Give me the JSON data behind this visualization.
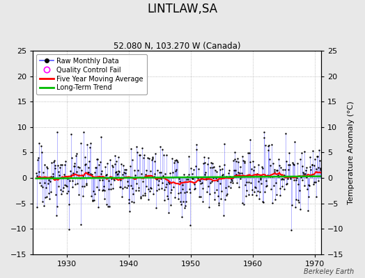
{
  "title": "LINTLAW,SA",
  "subtitle": "52.080 N, 103.270 W (Canada)",
  "ylabel": "Temperature Anomaly (°C)",
  "xlim": [
    1924.5,
    1971.0
  ],
  "ylim": [
    -15,
    25
  ],
  "yticks": [
    -15,
    -10,
    -5,
    0,
    5,
    10,
    15,
    20,
    25
  ],
  "xticks": [
    1930,
    1940,
    1950,
    1960,
    1970
  ],
  "background_color": "#e8e8e8",
  "plot_bg_color": "#ffffff",
  "line_color": "#5555ff",
  "dot_color": "#000000",
  "moving_avg_color": "#ff0000",
  "trend_color": "#00bb00",
  "qc_color": "#ff00ff",
  "watermark": "Berkeley Earth",
  "seed": 17
}
